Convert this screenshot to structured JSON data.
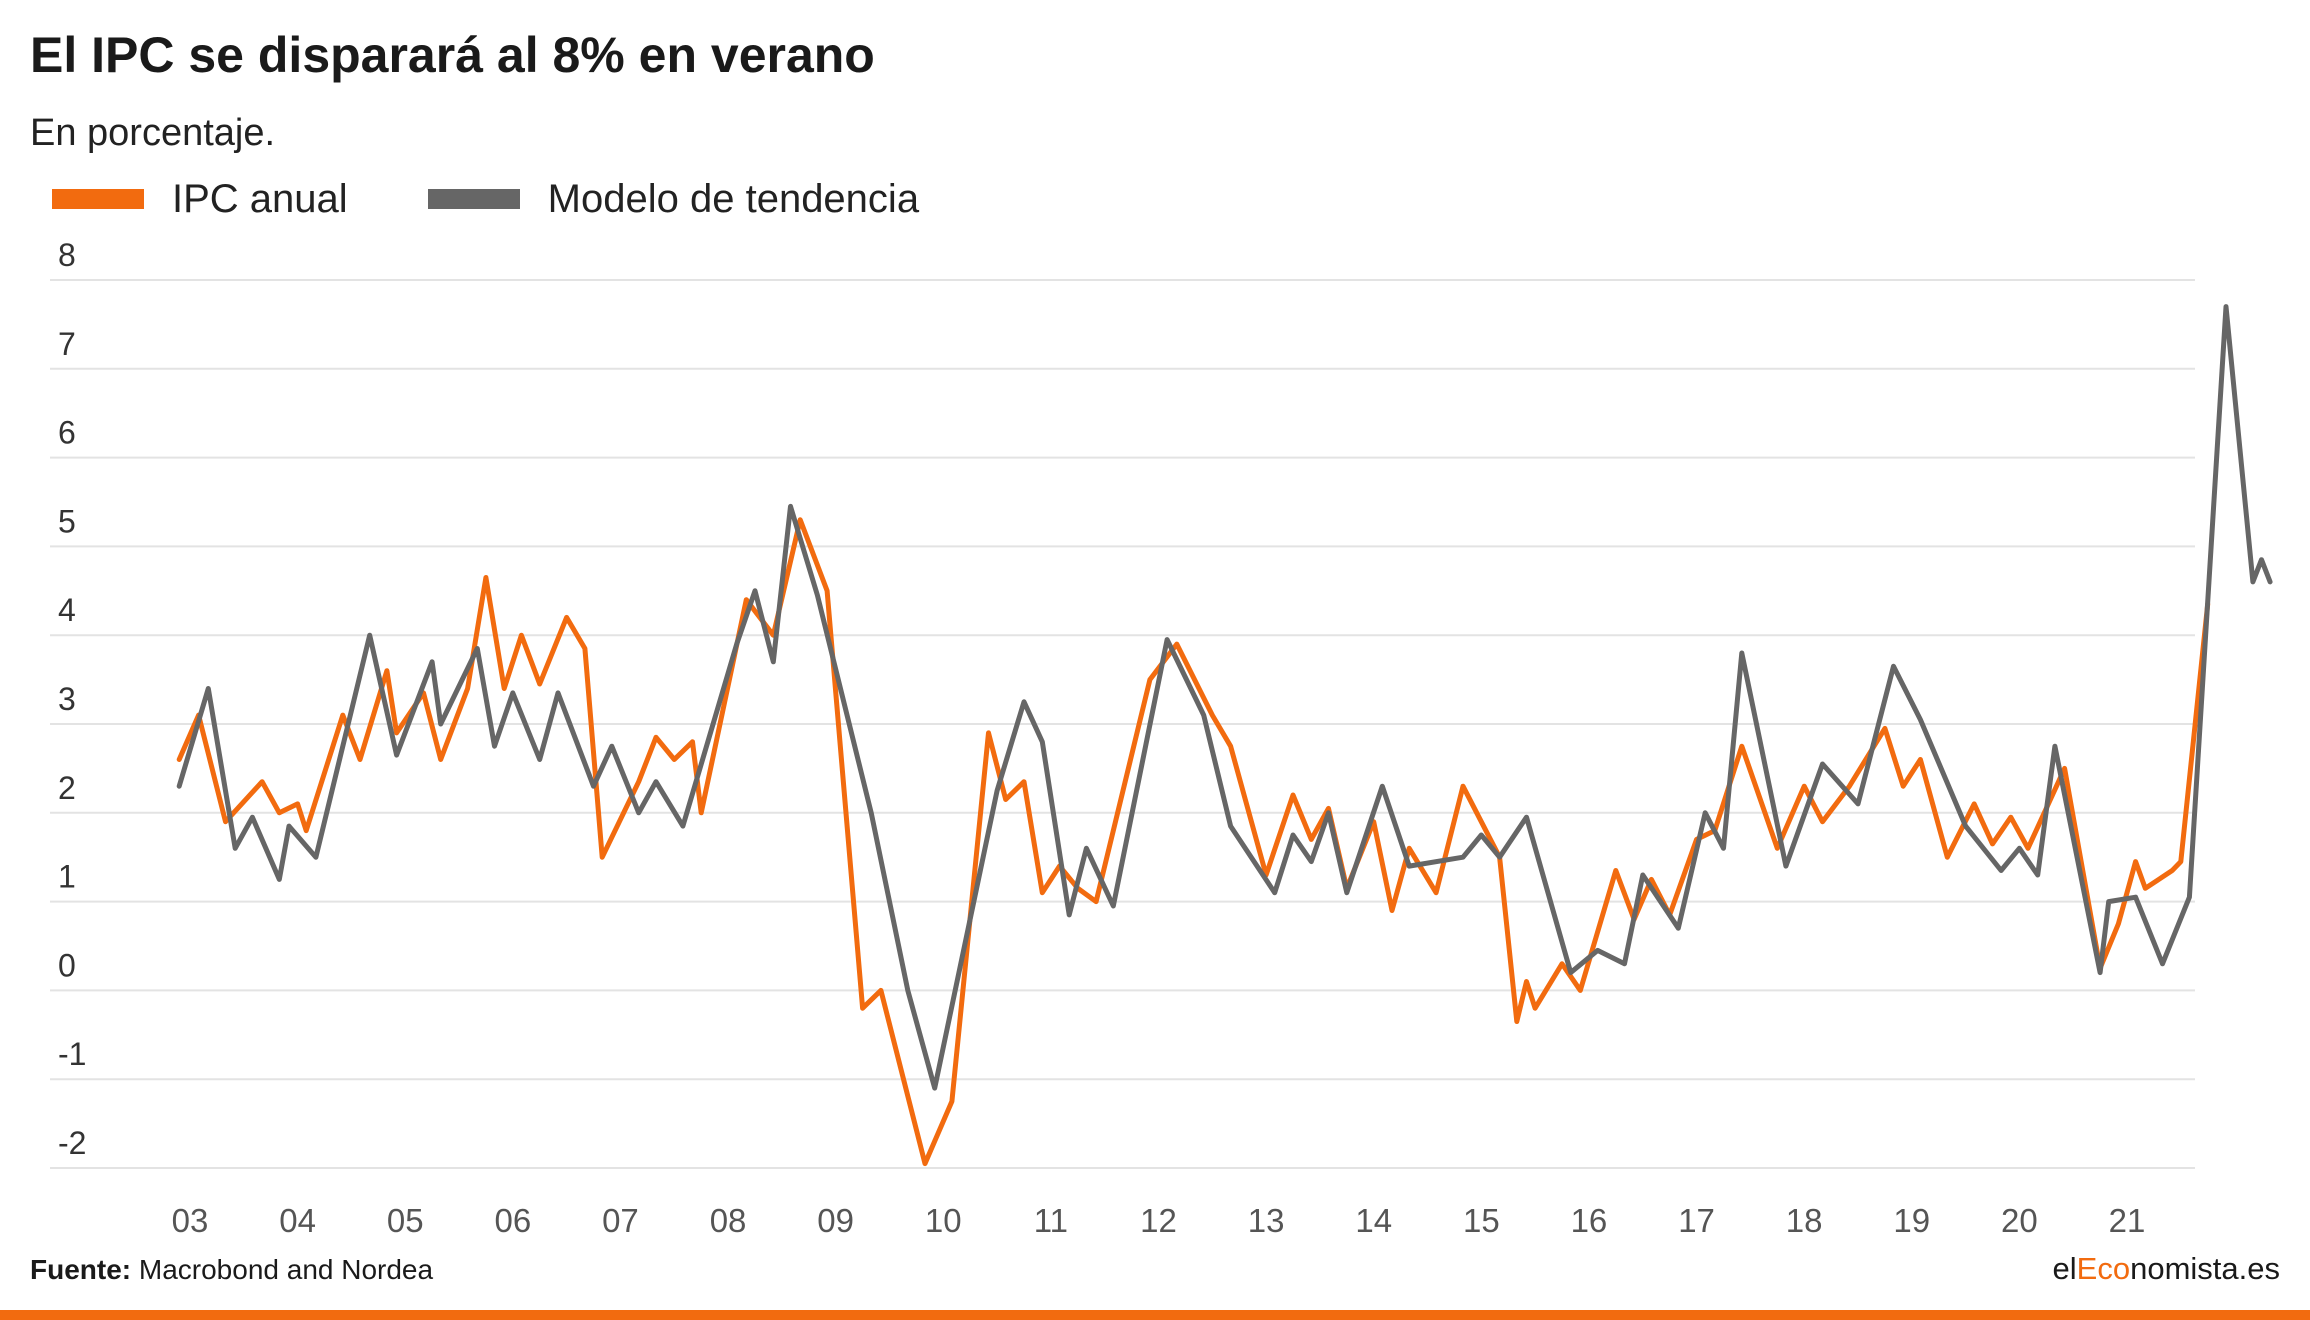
{
  "header": {
    "title": "El IPC se disparará al 8% en verano",
    "subtitle": "En porcentaje."
  },
  "colors": {
    "accent": "#f26b0f",
    "series_gray": "#666666",
    "grid": "#e3e3e3",
    "tick_text": "#555555"
  },
  "footer": {
    "source_label": "Fuente:",
    "source_text": " Macrobond and Nordea",
    "brand_prefix": "el",
    "brand_accent": "Eco",
    "brand_suffix": "nomista.es"
  },
  "chart_data": {
    "type": "line",
    "title": "El IPC se disparará al 8% en verano",
    "subtitle": "En porcentaje.",
    "ylim": [
      -2,
      8
    ],
    "yticks": [
      8,
      7,
      6,
      5,
      4,
      3,
      2,
      1,
      0,
      -1,
      -2
    ],
    "xlim": [
      2002.8,
      2022.0
    ],
    "xtick_values": [
      2003,
      2004,
      2005,
      2006,
      2007,
      2008,
      2009,
      2010,
      2011,
      2012,
      2013,
      2014,
      2015,
      2016,
      2017,
      2018,
      2019,
      2020,
      2021
    ],
    "xtick_labels": [
      "03",
      "04",
      "05",
      "06",
      "07",
      "08",
      "09",
      "10",
      "11",
      "12",
      "13",
      "14",
      "15",
      "16",
      "17",
      "18",
      "19",
      "20",
      "21"
    ],
    "grid": true,
    "legend_position": "top-left",
    "series": [
      {
        "name": "IPC anual",
        "color": "#f26b0f",
        "points": [
          [
            2002.9,
            2.6
          ],
          [
            2003.08,
            3.1
          ],
          [
            2003.33,
            1.9
          ],
          [
            2003.67,
            2.35
          ],
          [
            2003.83,
            2.0
          ],
          [
            2004.0,
            2.1
          ],
          [
            2004.08,
            1.8
          ],
          [
            2004.42,
            3.1
          ],
          [
            2004.58,
            2.6
          ],
          [
            2004.83,
            3.6
          ],
          [
            2004.92,
            2.9
          ],
          [
            2005.17,
            3.35
          ],
          [
            2005.33,
            2.6
          ],
          [
            2005.58,
            3.4
          ],
          [
            2005.75,
            4.65
          ],
          [
            2005.92,
            3.4
          ],
          [
            2006.08,
            4.0
          ],
          [
            2006.25,
            3.45
          ],
          [
            2006.5,
            4.2
          ],
          [
            2006.67,
            3.85
          ],
          [
            2006.83,
            1.5
          ],
          [
            2007.17,
            2.35
          ],
          [
            2007.33,
            2.85
          ],
          [
            2007.5,
            2.6
          ],
          [
            2007.67,
            2.8
          ],
          [
            2007.75,
            2.0
          ],
          [
            2008.17,
            4.4
          ],
          [
            2008.42,
            4.0
          ],
          [
            2008.67,
            5.3
          ],
          [
            2008.92,
            4.5
          ],
          [
            2009.25,
            -0.2
          ],
          [
            2009.42,
            0.0
          ],
          [
            2009.83,
            -1.95
          ],
          [
            2010.08,
            -1.25
          ],
          [
            2010.42,
            2.9
          ],
          [
            2010.58,
            2.15
          ],
          [
            2010.75,
            2.35
          ],
          [
            2010.92,
            1.1
          ],
          [
            2011.08,
            1.4
          ],
          [
            2011.25,
            1.15
          ],
          [
            2011.42,
            1.0
          ],
          [
            2011.92,
            3.5
          ],
          [
            2012.17,
            3.9
          ],
          [
            2012.5,
            3.1
          ],
          [
            2012.67,
            2.75
          ],
          [
            2013.0,
            1.3
          ],
          [
            2013.25,
            2.2
          ],
          [
            2013.42,
            1.7
          ],
          [
            2013.58,
            2.05
          ],
          [
            2013.75,
            1.15
          ],
          [
            2014.0,
            1.9
          ],
          [
            2014.17,
            0.9
          ],
          [
            2014.33,
            1.6
          ],
          [
            2014.58,
            1.1
          ],
          [
            2014.83,
            2.3
          ],
          [
            2015.17,
            1.5
          ],
          [
            2015.33,
            -0.35
          ],
          [
            2015.42,
            0.1
          ],
          [
            2015.5,
            -0.2
          ],
          [
            2015.75,
            0.3
          ],
          [
            2015.92,
            0.0
          ],
          [
            2016.25,
            1.35
          ],
          [
            2016.42,
            0.8
          ],
          [
            2016.58,
            1.25
          ],
          [
            2016.75,
            0.85
          ],
          [
            2017.0,
            1.7
          ],
          [
            2017.17,
            1.8
          ],
          [
            2017.42,
            2.75
          ],
          [
            2017.75,
            1.6
          ],
          [
            2018.0,
            2.3
          ],
          [
            2018.17,
            1.9
          ],
          [
            2018.42,
            2.3
          ],
          [
            2018.75,
            2.95
          ],
          [
            2018.92,
            2.3
          ],
          [
            2019.08,
            2.6
          ],
          [
            2019.33,
            1.5
          ],
          [
            2019.58,
            2.1
          ],
          [
            2019.75,
            1.65
          ],
          [
            2019.92,
            1.95
          ],
          [
            2020.08,
            1.6
          ],
          [
            2020.42,
            2.5
          ],
          [
            2020.75,
            0.25
          ],
          [
            2020.92,
            0.75
          ],
          [
            2021.08,
            1.45
          ],
          [
            2021.17,
            1.15
          ],
          [
            2021.42,
            1.35
          ],
          [
            2021.5,
            1.45
          ],
          [
            2021.75,
            4.35
          ]
        ]
      },
      {
        "name": "Modelo de tendencia",
        "color": "#666666",
        "points": [
          [
            2002.9,
            2.3
          ],
          [
            2003.17,
            3.4
          ],
          [
            2003.42,
            1.6
          ],
          [
            2003.58,
            1.95
          ],
          [
            2003.83,
            1.25
          ],
          [
            2003.92,
            1.85
          ],
          [
            2004.17,
            1.5
          ],
          [
            2004.67,
            4.0
          ],
          [
            2004.92,
            2.65
          ],
          [
            2005.25,
            3.7
          ],
          [
            2005.33,
            3.0
          ],
          [
            2005.67,
            3.85
          ],
          [
            2005.83,
            2.75
          ],
          [
            2006.0,
            3.35
          ],
          [
            2006.25,
            2.6
          ],
          [
            2006.42,
            3.35
          ],
          [
            2006.75,
            2.3
          ],
          [
            2006.92,
            2.75
          ],
          [
            2007.17,
            2.0
          ],
          [
            2007.33,
            2.35
          ],
          [
            2007.58,
            1.85
          ],
          [
            2008.08,
            3.9
          ],
          [
            2008.25,
            4.5
          ],
          [
            2008.42,
            3.7
          ],
          [
            2008.58,
            5.45
          ],
          [
            2008.83,
            4.45
          ],
          [
            2009.33,
            2.0
          ],
          [
            2009.67,
            0.0
          ],
          [
            2009.92,
            -1.1
          ],
          [
            2010.5,
            2.25
          ],
          [
            2010.75,
            3.25
          ],
          [
            2010.92,
            2.8
          ],
          [
            2011.17,
            0.85
          ],
          [
            2011.33,
            1.6
          ],
          [
            2011.58,
            0.95
          ],
          [
            2012.08,
            3.95
          ],
          [
            2012.42,
            3.1
          ],
          [
            2012.67,
            1.85
          ],
          [
            2013.08,
            1.1
          ],
          [
            2013.25,
            1.75
          ],
          [
            2013.42,
            1.45
          ],
          [
            2013.58,
            2.0
          ],
          [
            2013.75,
            1.1
          ],
          [
            2014.08,
            2.3
          ],
          [
            2014.33,
            1.4
          ],
          [
            2014.83,
            1.5
          ],
          [
            2015.0,
            1.75
          ],
          [
            2015.17,
            1.5
          ],
          [
            2015.42,
            1.95
          ],
          [
            2015.83,
            0.2
          ],
          [
            2016.08,
            0.45
          ],
          [
            2016.33,
            0.3
          ],
          [
            2016.5,
            1.3
          ],
          [
            2016.83,
            0.7
          ],
          [
            2017.08,
            2.0
          ],
          [
            2017.25,
            1.6
          ],
          [
            2017.42,
            3.8
          ],
          [
            2017.83,
            1.4
          ],
          [
            2018.17,
            2.55
          ],
          [
            2018.5,
            2.1
          ],
          [
            2018.83,
            3.65
          ],
          [
            2019.08,
            3.05
          ],
          [
            2019.5,
            1.85
          ],
          [
            2019.83,
            1.35
          ],
          [
            2020.0,
            1.6
          ],
          [
            2020.17,
            1.3
          ],
          [
            2020.33,
            2.75
          ],
          [
            2020.75,
            0.2
          ],
          [
            2020.83,
            1.0
          ],
          [
            2021.08,
            1.05
          ],
          [
            2021.33,
            0.3
          ],
          [
            2021.58,
            1.05
          ],
          [
            2021.92,
            7.7
          ],
          [
            2022.17,
            4.6
          ],
          [
            2022.25,
            4.85
          ],
          [
            2022.33,
            4.6
          ]
        ]
      }
    ]
  }
}
